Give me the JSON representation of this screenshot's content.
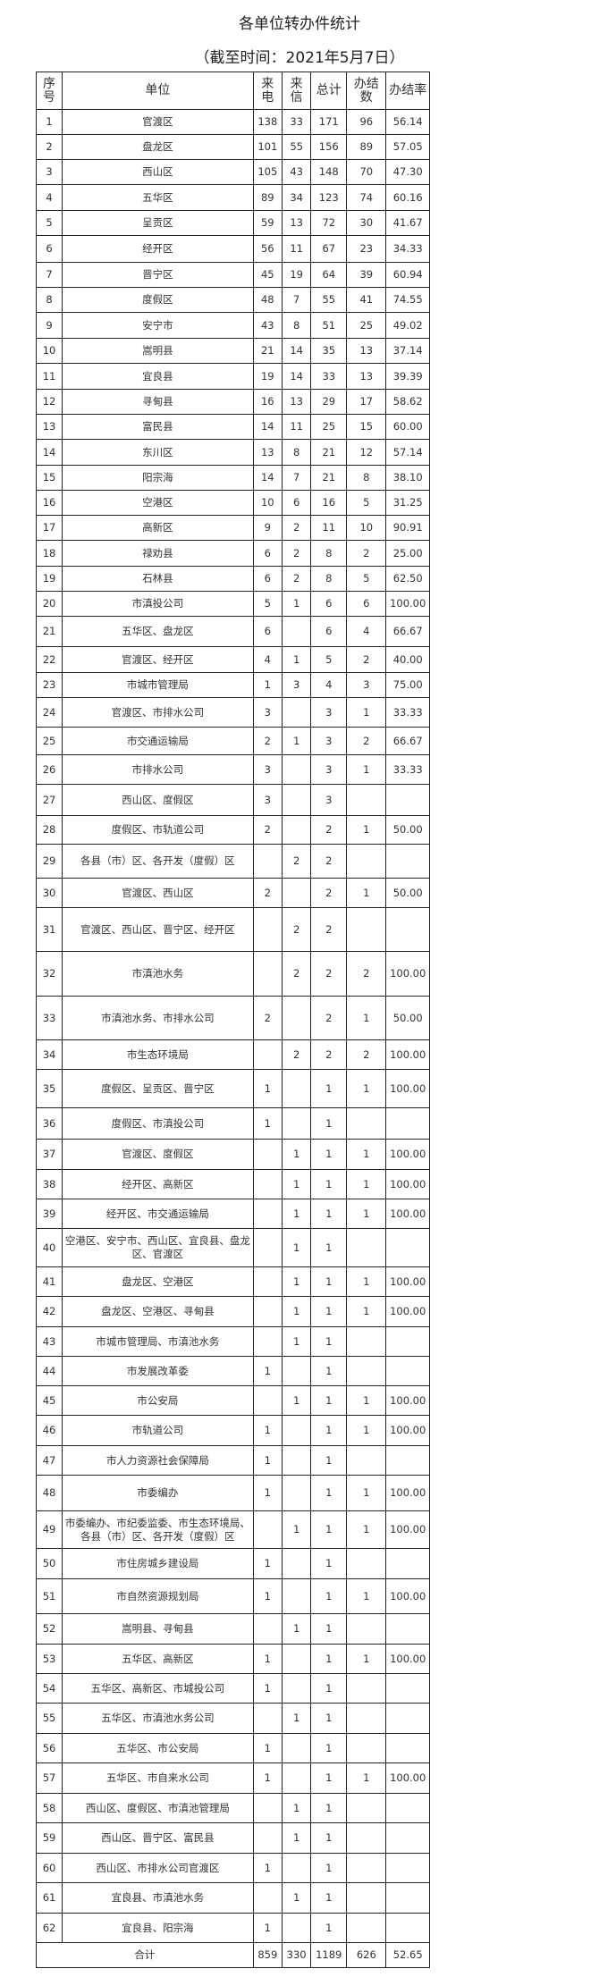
{
  "title": "各单位转办件统计",
  "subtitle": "（截至时间：2021年5月7日）",
  "table": {
    "headers": [
      "序号",
      "单位",
      "来电",
      "来信",
      "总计",
      "办结数",
      "办结率"
    ],
    "rows": [
      [
        "1",
        "官渡区",
        "138",
        "33",
        "171",
        "96",
        "56.14"
      ],
      [
        "2",
        "盘龙区",
        "101",
        "55",
        "156",
        "89",
        "57.05"
      ],
      [
        "3",
        "西山区",
        "105",
        "43",
        "148",
        "70",
        "47.30"
      ],
      [
        "4",
        "五华区",
        "89",
        "34",
        "123",
        "74",
        "60.16"
      ],
      [
        "5",
        "呈贡区",
        "59",
        "13",
        "72",
        "30",
        "41.67"
      ],
      [
        "6",
        "经开区",
        "56",
        "11",
        "67",
        "23",
        "34.33"
      ],
      [
        "7",
        "晋宁区",
        "45",
        "19",
        "64",
        "39",
        "60.94"
      ],
      [
        "8",
        "度假区",
        "48",
        "7",
        "55",
        "41",
        "74.55"
      ],
      [
        "9",
        "安宁市",
        "43",
        "8",
        "51",
        "25",
        "49.02"
      ],
      [
        "10",
        "嵩明县",
        "21",
        "14",
        "35",
        "13",
        "37.14"
      ],
      [
        "11",
        "宜良县",
        "19",
        "14",
        "33",
        "13",
        "39.39"
      ],
      [
        "12",
        "寻甸县",
        "16",
        "13",
        "29",
        "17",
        "58.62"
      ],
      [
        "13",
        "富民县",
        "14",
        "11",
        "25",
        "15",
        "60.00"
      ],
      [
        "14",
        "东川区",
        "13",
        "8",
        "21",
        "12",
        "57.14"
      ],
      [
        "15",
        "阳宗海",
        "14",
        "7",
        "21",
        "8",
        "38.10"
      ],
      [
        "16",
        "空港区",
        "10",
        "6",
        "16",
        "5",
        "31.25"
      ],
      [
        "17",
        "高新区",
        "9",
        "2",
        "11",
        "10",
        "90.91"
      ],
      [
        "18",
        "禄劝县",
        "6",
        "2",
        "8",
        "2",
        "25.00"
      ],
      [
        "19",
        "石林县",
        "6",
        "2",
        "8",
        "5",
        "62.50"
      ],
      [
        "20",
        "市滇投公司",
        "5",
        "1",
        "6",
        "6",
        "100.00"
      ],
      [
        "21",
        "五华区、盘龙区",
        "6",
        "",
        "6",
        "4",
        "66.67"
      ],
      [
        "22",
        "官渡区、经开区",
        "4",
        "1",
        "5",
        "2",
        "40.00"
      ],
      [
        "23",
        "市城市管理局",
        "1",
        "3",
        "4",
        "3",
        "75.00"
      ],
      [
        "24",
        "官渡区、市排水公司",
        "3",
        "",
        "3",
        "1",
        "33.33"
      ],
      [
        "25",
        "市交通运输局",
        "2",
        "1",
        "3",
        "2",
        "66.67"
      ],
      [
        "26",
        "市排水公司",
        "3",
        "",
        "3",
        "1",
        "33.33"
      ],
      [
        "27",
        "西山区、度假区",
        "3",
        "",
        "3",
        "",
        ""
      ],
      [
        "28",
        "度假区、市轨道公司",
        "2",
        "",
        "2",
        "1",
        "50.00"
      ],
      [
        "29",
        "各县（市）区、各开发（度假）区",
        "",
        "2",
        "2",
        "",
        ""
      ],
      [
        "30",
        "官渡区、西山区",
        "2",
        "",
        "2",
        "1",
        "50.00"
      ],
      [
        "31",
        "官渡区、西山区、晋宁区、经开区",
        "",
        "2",
        "2",
        "",
        ""
      ],
      [
        "32",
        "市滇池水务",
        "",
        "2",
        "2",
        "2",
        "100.00"
      ],
      [
        "33",
        "市滇池水务、市排水公司",
        "2",
        "",
        "2",
        "1",
        "50.00"
      ],
      [
        "34",
        "市生态环境局",
        "",
        "2",
        "2",
        "2",
        "100.00"
      ],
      [
        "35",
        "度假区、呈贡区、晋宁区",
        "1",
        "",
        "1",
        "1",
        "100.00"
      ],
      [
        "36",
        "度假区、市滇投公司",
        "1",
        "",
        "1",
        "",
        ""
      ],
      [
        "37",
        "官渡区、度假区",
        "",
        "1",
        "1",
        "1",
        "100.00"
      ],
      [
        "38",
        "经开区、高新区",
        "",
        "1",
        "1",
        "1",
        "100.00"
      ],
      [
        "39",
        "经开区、市交通运输局",
        "",
        "1",
        "1",
        "1",
        "100.00"
      ],
      [
        "40",
        "空港区、安宁市、西山区、宜良县、盘龙区、官渡区",
        "",
        "1",
        "1",
        "",
        ""
      ],
      [
        "41",
        "盘龙区、空港区",
        "",
        "1",
        "1",
        "1",
        "100.00"
      ],
      [
        "42",
        "盘龙区、空港区、寻甸县",
        "",
        "1",
        "1",
        "1",
        "100.00"
      ],
      [
        "43",
        "市城市管理局、市滇池水务",
        "",
        "1",
        "1",
        "",
        ""
      ],
      [
        "44",
        "市发展改革委",
        "1",
        "",
        "1",
        "",
        ""
      ],
      [
        "45",
        "市公安局",
        "",
        "1",
        "1",
        "1",
        "100.00"
      ],
      [
        "46",
        "市轨道公司",
        "1",
        "",
        "1",
        "1",
        "100.00"
      ],
      [
        "47",
        "市人力资源社会保障局",
        "1",
        "",
        "1",
        "",
        ""
      ],
      [
        "48",
        "市委编办",
        "1",
        "",
        "1",
        "1",
        "100.00"
      ],
      [
        "49",
        "市委编办、市纪委监委、市生态环境局、各县（市）区、各开发（度假）区",
        "",
        "1",
        "1",
        "1",
        "100.00"
      ],
      [
        "50",
        "市住房城乡建设局",
        "1",
        "",
        "1",
        "",
        ""
      ],
      [
        "51",
        "市自然资源规划局",
        "1",
        "",
        "1",
        "1",
        "100.00"
      ],
      [
        "52",
        "嵩明县、寻甸县",
        "",
        "1",
        "1",
        "",
        ""
      ],
      [
        "53",
        "五华区、高新区",
        "1",
        "",
        "1",
        "1",
        "100.00"
      ],
      [
        "54",
        "五华区、高新区、市城投公司",
        "1",
        "",
        "1",
        "",
        ""
      ],
      [
        "55",
        "五华区、市滇池水务公司",
        "",
        "1",
        "1",
        "",
        ""
      ],
      [
        "56",
        "五华区、市公安局",
        "1",
        "",
        "1",
        "",
        ""
      ],
      [
        "57",
        "五华区、市自来水公司",
        "1",
        "",
        "1",
        "1",
        "100.00"
      ],
      [
        "58",
        "西山区、度假区、市滇池管理局",
        "",
        "1",
        "1",
        "",
        ""
      ],
      [
        "59",
        "西山区、晋宁区、富民县",
        "",
        "1",
        "1",
        "",
        ""
      ],
      [
        "60",
        "西山区、市排水公司官渡区",
        "1",
        "",
        "1",
        "",
        ""
      ],
      [
        "61",
        "宜良县、市滇池水务",
        "",
        "1",
        "1",
        "",
        ""
      ],
      [
        "62",
        "宜良县、阳宗海",
        "1",
        "",
        "1",
        "",
        ""
      ]
    ],
    "total": {
      "label": "合计",
      "values": [
        "859",
        "330",
        "1189",
        "626",
        "52.65"
      ]
    }
  }
}
